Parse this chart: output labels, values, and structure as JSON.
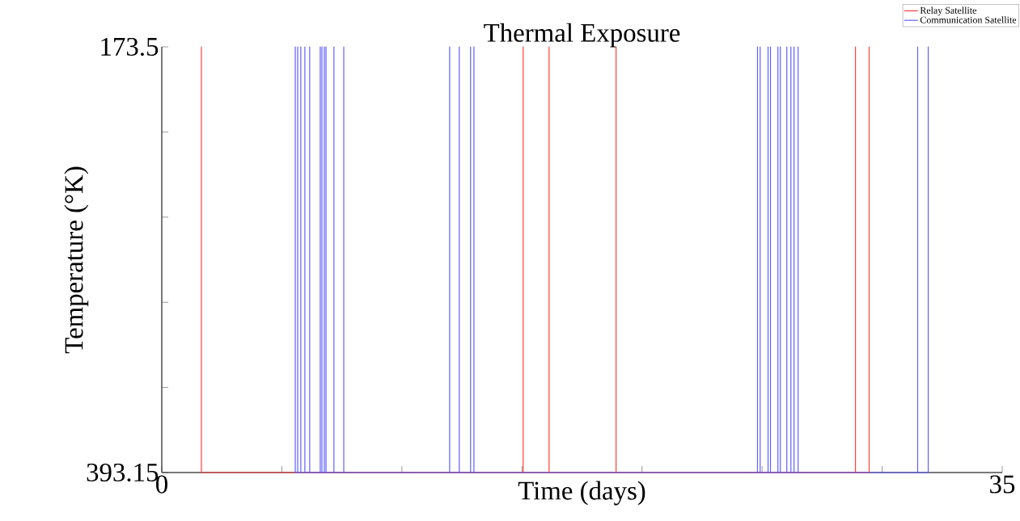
{
  "chart_data": {
    "type": "line",
    "title": "Thermal Exposure",
    "xlabel": "Time (days)",
    "ylabel": "Temperature (°K)",
    "xlim": [
      0,
      35
    ],
    "ylim": [
      393.15,
      173.5
    ],
    "xticks": [
      0,
      {
        "value": 5,
        "label": null
      },
      {
        "value": 10,
        "label": null
      },
      {
        "value": 15,
        "label": null
      },
      {
        "value": 20,
        "label": null
      },
      {
        "value": 25,
        "label": null
      },
      {
        "value": 30,
        "label": null
      },
      35
    ],
    "yticks": [
      393.15,
      {
        "value": 349.22,
        "label": null
      },
      {
        "value": 305.29,
        "label": null
      },
      {
        "value": 261.36,
        "label": null
      },
      {
        "value": 217.43,
        "label": null
      },
      173.5
    ],
    "legend": "top right",
    "marker": "none",
    "line_style": "solid",
    "grid": false,
    "series": [
      {
        "name": "Relay Satellite",
        "color": "#ff4040",
        "x": [
          1.65,
          1.65,
          1.65,
          15.05,
          15.05,
          15.05,
          16.13,
          16.13,
          16.13,
          18.92,
          18.92,
          18.92,
          28.89,
          28.89,
          28.89,
          29.46,
          29.46,
          29.46
        ],
        "values": [
          393.15,
          173.5,
          393.15,
          393.15,
          173.5,
          393.15,
          393.15,
          173.5,
          393.15,
          393.15,
          173.5,
          393.15,
          393.15,
          173.5,
          393.15,
          393.15,
          173.5,
          393.15
        ]
      },
      {
        "name": "Communication Satellite",
        "color": "#6060ff",
        "x": [
          5.56,
          5.56,
          5.56,
          5.66,
          5.66,
          5.66,
          5.79,
          5.79,
          5.79,
          5.96,
          5.96,
          5.96,
          6.16,
          6.16,
          6.16,
          6.6,
          6.6,
          6.6,
          6.67,
          6.67,
          6.67,
          6.77,
          6.77,
          6.77,
          6.84,
          6.84,
          6.84,
          7.17,
          7.17,
          7.17,
          7.58,
          7.58,
          7.58,
          11.99,
          11.99,
          11.99,
          12.39,
          12.39,
          12.39,
          12.86,
          12.86,
          12.86,
          13.0,
          13.0,
          13.0,
          24.81,
          24.81,
          24.81,
          24.92,
          24.92,
          24.92,
          25.25,
          25.25,
          25.25,
          25.35,
          25.35,
          25.35,
          25.66,
          25.66,
          25.66,
          25.76,
          25.76,
          25.76,
          26.03,
          26.03,
          26.03,
          26.2,
          26.2,
          26.2,
          26.33,
          26.33,
          26.33,
          26.5,
          26.5,
          26.5,
          31.48,
          31.48,
          31.48,
          31.92,
          31.92,
          31.92
        ],
        "values": [
          393.15,
          173.5,
          393.15,
          393.15,
          173.5,
          393.15,
          393.15,
          173.5,
          393.15,
          393.15,
          173.5,
          393.15,
          393.15,
          173.5,
          393.15,
          393.15,
          173.5,
          393.15,
          393.15,
          173.5,
          393.15,
          393.15,
          173.5,
          393.15,
          393.15,
          173.5,
          393.15,
          393.15,
          173.5,
          393.15,
          393.15,
          173.5,
          393.15,
          393.15,
          173.5,
          393.15,
          393.15,
          173.5,
          393.15,
          393.15,
          173.5,
          393.15,
          393.15,
          173.5,
          393.15,
          393.15,
          173.5,
          393.15,
          393.15,
          173.5,
          393.15,
          393.15,
          173.5,
          393.15,
          393.15,
          173.5,
          393.15,
          393.15,
          173.5,
          393.15,
          393.15,
          173.5,
          393.15,
          393.15,
          173.5,
          393.15,
          393.15,
          173.5,
          393.15,
          393.15,
          173.5,
          393.15,
          393.15,
          173.5,
          393.15,
          393.15,
          173.5,
          393.15,
          393.15,
          173.5,
          393.15
        ]
      }
    ]
  }
}
